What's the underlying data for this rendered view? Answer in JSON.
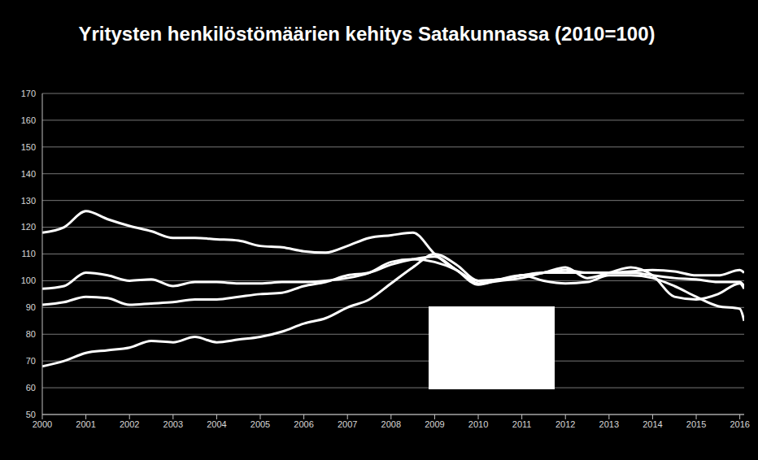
{
  "chart_data": {
    "type": "line",
    "title": "Yritysten henkilöstömäärien kehitys Satakunnassa (2010=100)",
    "x": [
      2000,
      2000.5,
      2001,
      2001.5,
      2002,
      2002.5,
      2003,
      2003.5,
      2004,
      2004.5,
      2005,
      2005.5,
      2006,
      2006.5,
      2007,
      2007.5,
      2008,
      2008.5,
      2009,
      2009.5,
      2010,
      2010.5,
      2011,
      2011.5,
      2012,
      2012.5,
      2013,
      2013.5,
      2014,
      2014.5,
      2015,
      2015.5,
      2016,
      2016.1
    ],
    "series": [
      {
        "color": "#ffffff",
        "values": [
          118,
          120,
          126,
          123,
          120.5,
          118.5,
          116,
          116,
          115.5,
          115,
          113,
          112.5,
          111,
          110.5,
          113,
          116,
          117,
          118,
          110,
          104,
          100,
          100.5,
          102,
          103,
          103,
          103,
          103,
          103,
          102,
          101,
          100.5,
          99.5,
          99.5,
          98
        ]
      },
      {
        "color": "#ffffff",
        "values": [
          97,
          98,
          103,
          102,
          100,
          100.5,
          98,
          99.5,
          99.5,
          99,
          99,
          99.5,
          99.5,
          100,
          101,
          103,
          107,
          108,
          107,
          104,
          99,
          100,
          101,
          103,
          104,
          103,
          103,
          103.5,
          104,
          103.5,
          102,
          102,
          104,
          103
        ]
      },
      {
        "color": "#ffffff",
        "values": [
          91,
          92,
          94,
          93.5,
          91,
          91.5,
          92,
          93,
          93,
          94,
          95,
          95.5,
          98,
          99.5,
          102,
          103,
          106,
          108,
          109,
          104,
          98.5,
          100.5,
          102,
          100,
          99,
          99.5,
          102,
          102,
          101,
          98,
          94,
          90.5,
          89.5,
          85
        ]
      },
      {
        "color": "#ffffff",
        "values": [
          68,
          70,
          73,
          74,
          75,
          77.5,
          77,
          79,
          77,
          78,
          79,
          81,
          84,
          86,
          90,
          93,
          99,
          105,
          110,
          106,
          100,
          100.5,
          102,
          103,
          105,
          101,
          103,
          105,
          102,
          94,
          93,
          95,
          99,
          97
        ]
      }
    ],
    "xlim": [
      2000,
      2016.1
    ],
    "xticks": [
      2000,
      2001,
      2002,
      2003,
      2004,
      2005,
      2006,
      2007,
      2008,
      2009,
      2010,
      2011,
      2012,
      2013,
      2014,
      2015,
      2016
    ],
    "ylim": [
      50,
      170
    ],
    "yticks": [
      50,
      60,
      70,
      80,
      90,
      100,
      110,
      120,
      130,
      140,
      150,
      160,
      170
    ],
    "grid": true
  }
}
